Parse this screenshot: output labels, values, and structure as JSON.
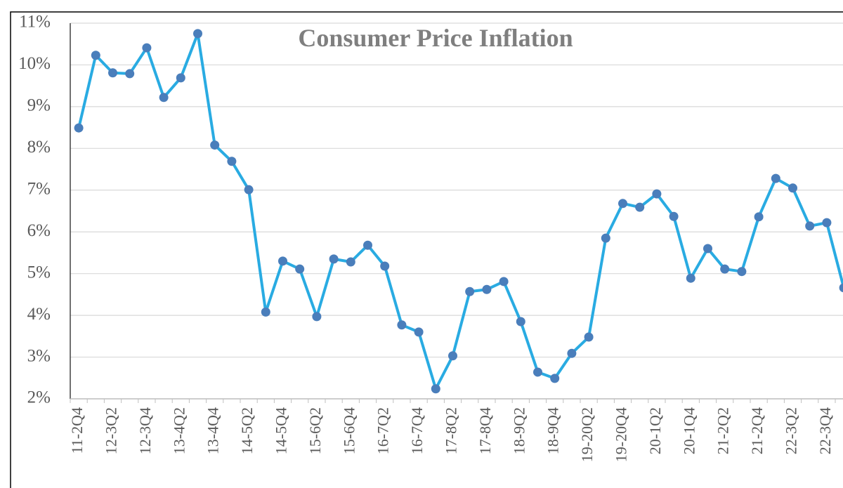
{
  "chart_data": {
    "type": "line",
    "title": "Consumer  Price Inflation",
    "categories": [
      "11-2Q4",
      null,
      "12-3Q2",
      null,
      "12-3Q4",
      null,
      "13-4Q2",
      null,
      "13-4Q4",
      null,
      "14-5Q2",
      null,
      "14-5Q4",
      null,
      "15-6Q2",
      null,
      "15-6Q4",
      null,
      "16-7Q2",
      null,
      "16-7Q4",
      null,
      "17-8Q2",
      null,
      "17-8Q4",
      null,
      "18-9Q2",
      null,
      "18-9Q4",
      null,
      "19-20Q2",
      null,
      "19-20Q4",
      null,
      "20-1Q2",
      null,
      "20-1Q4",
      null,
      "21-2Q2",
      null,
      "21-2Q4",
      null,
      "22-3Q2",
      null,
      "22-3Q4",
      null
    ],
    "series": [
      {
        "name": "Consumer Price Inflation",
        "color": "#29abe2",
        "marker_color": "#4a7ebb",
        "values": [
          8.49,
          10.23,
          9.81,
          9.79,
          10.41,
          9.22,
          9.69,
          10.75,
          8.08,
          7.69,
          7.01,
          4.08,
          5.3,
          5.11,
          3.97,
          5.35,
          5.28,
          5.68,
          5.18,
          3.77,
          3.6,
          2.24,
          3.03,
          4.57,
          4.62,
          4.81,
          3.85,
          2.64,
          2.49,
          3.09,
          3.48,
          5.85,
          6.68,
          6.59,
          6.91,
          6.37,
          4.89,
          5.6,
          5.11,
          5.05,
          6.36,
          7.28,
          7.05,
          6.14,
          6.22,
          4.66
        ]
      }
    ],
    "ylim": [
      2,
      11
    ],
    "yticks": [
      {
        "value": 2,
        "label": "2%"
      },
      {
        "value": 3,
        "label": "3%"
      },
      {
        "value": 4,
        "label": "4%"
      },
      {
        "value": 5,
        "label": "5%"
      },
      {
        "value": 6,
        "label": "6%"
      },
      {
        "value": 7,
        "label": "7%"
      },
      {
        "value": 8,
        "label": "8%"
      },
      {
        "value": 9,
        "label": "9%"
      },
      {
        "value": 10,
        "label": "10%"
      },
      {
        "value": 11,
        "label": "11%"
      }
    ],
    "grid": true
  }
}
